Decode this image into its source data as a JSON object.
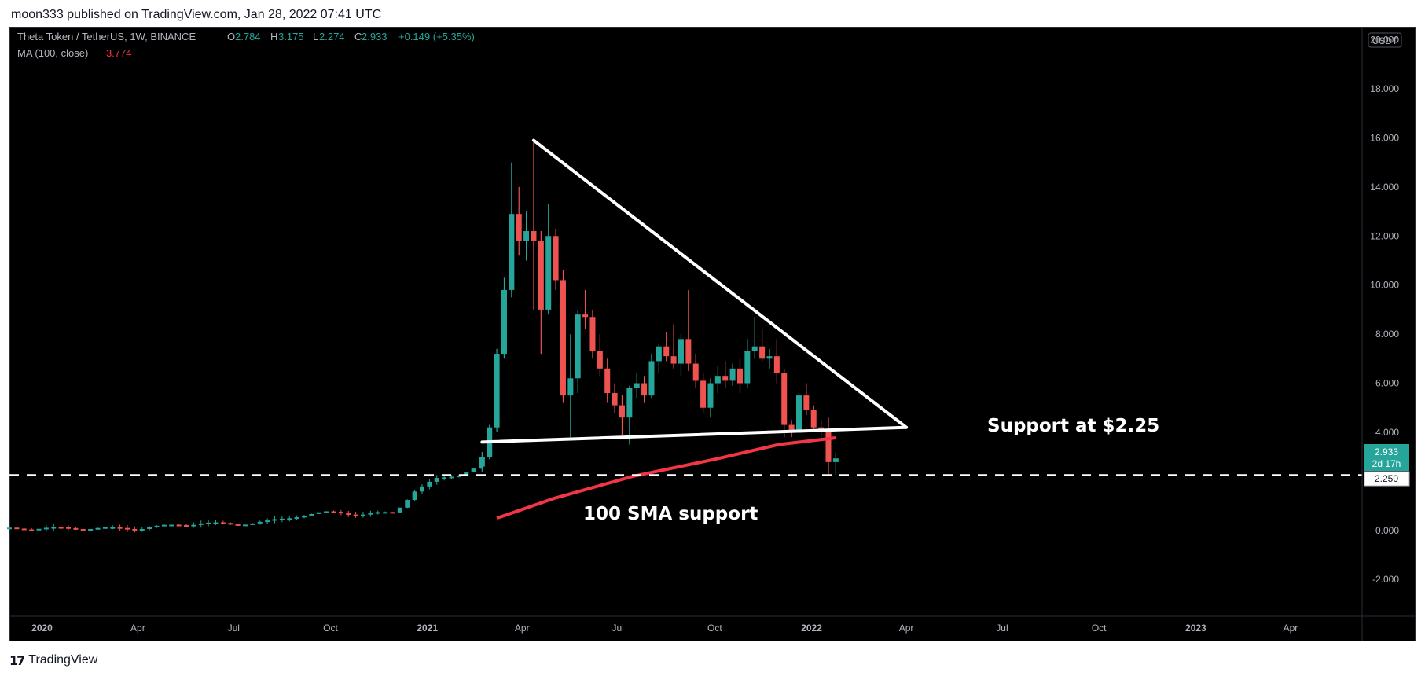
{
  "header": {
    "publisher_line": "moon333 published on TradingView.com, Jan 28, 2022 07:41 UTC"
  },
  "legend": {
    "symbol": "Theta Token / TetherUS, 1W, BINANCE",
    "o_label": "O",
    "o_value": "2.784",
    "h_label": "H",
    "h_value": "3.175",
    "l_label": "L",
    "l_value": "2.274",
    "c_label": "C",
    "c_value": "2.933",
    "change": "+0.149 (+5.35%)",
    "ma_label": "MA (100, close)",
    "ma_value": "3.774"
  },
  "price_axis": {
    "currency": "USDT",
    "ticks": [
      "20.000",
      "18.000",
      "16.000",
      "14.000",
      "12.000",
      "10.000",
      "8.000",
      "6.000",
      "4.000",
      "0.000",
      "-2.000"
    ],
    "last_price": "2.933",
    "countdown": "2d 17h",
    "support_price": "2.250"
  },
  "time_axis": {
    "ticks": [
      "2020",
      "Apr",
      "Jul",
      "Oct",
      "2021",
      "Apr",
      "Jul",
      "Oct",
      "2022",
      "Apr",
      "Jul",
      "Oct",
      "2023",
      "Apr"
    ]
  },
  "annotations": {
    "support_text": "Support at $2.25",
    "sma_text": "100 SMA support"
  },
  "footer": {
    "brand_logo": "17",
    "brand_name": "TradingView"
  },
  "colors": {
    "up": "#26a69a",
    "down": "#ef5350",
    "ma": "#f23645",
    "background": "#000000",
    "axis_text": "#b2b5be",
    "annotation": "#ffffff"
  },
  "chart_data": {
    "type": "candlestick",
    "symbol": "Theta Token / TetherUS",
    "interval": "1W",
    "exchange": "BINANCE",
    "ylim": [
      -3.5,
      20.5
    ],
    "x_range": [
      "2019-12-01",
      "2023-06-08"
    ],
    "candles": [
      {
        "date": "2021-02-22",
        "o": 2.6,
        "h": 3.2,
        "l": 2.4,
        "c": 3.0
      },
      {
        "date": "2021-03-01",
        "o": 3.0,
        "h": 4.3,
        "l": 2.9,
        "c": 4.2
      },
      {
        "date": "2021-03-08",
        "o": 4.2,
        "h": 7.4,
        "l": 4.0,
        "c": 7.2
      },
      {
        "date": "2021-03-15",
        "o": 7.2,
        "h": 10.3,
        "l": 7.0,
        "c": 9.8
      },
      {
        "date": "2021-03-22",
        "o": 9.8,
        "h": 15.0,
        "l": 9.5,
        "c": 12.9
      },
      {
        "date": "2021-03-29",
        "o": 12.9,
        "h": 14.0,
        "l": 11.2,
        "c": 11.8
      },
      {
        "date": "2021-04-05",
        "o": 11.8,
        "h": 13.0,
        "l": 11.0,
        "c": 12.2
      },
      {
        "date": "2021-04-12",
        "o": 12.2,
        "h": 15.9,
        "l": 9.0,
        "c": 11.8
      },
      {
        "date": "2021-04-19",
        "o": 11.8,
        "h": 12.2,
        "l": 7.2,
        "c": 9.0
      },
      {
        "date": "2021-04-26",
        "o": 9.0,
        "h": 13.3,
        "l": 8.8,
        "c": 12.0
      },
      {
        "date": "2021-05-03",
        "o": 12.0,
        "h": 12.3,
        "l": 9.8,
        "c": 10.2
      },
      {
        "date": "2021-05-10",
        "o": 10.2,
        "h": 10.6,
        "l": 5.2,
        "c": 5.5
      },
      {
        "date": "2021-05-17",
        "o": 5.5,
        "h": 8.0,
        "l": 3.8,
        "c": 6.2
      },
      {
        "date": "2021-05-24",
        "o": 6.2,
        "h": 9.0,
        "l": 5.6,
        "c": 8.8
      },
      {
        "date": "2021-05-31",
        "o": 8.8,
        "h": 9.8,
        "l": 8.2,
        "c": 8.7
      },
      {
        "date": "2021-06-07",
        "o": 8.7,
        "h": 9.0,
        "l": 7.0,
        "c": 7.3
      },
      {
        "date": "2021-06-14",
        "o": 7.3,
        "h": 8.0,
        "l": 6.3,
        "c": 6.6
      },
      {
        "date": "2021-06-21",
        "o": 6.6,
        "h": 7.0,
        "l": 5.2,
        "c": 5.6
      },
      {
        "date": "2021-06-28",
        "o": 5.6,
        "h": 6.0,
        "l": 4.8,
        "c": 5.1
      },
      {
        "date": "2021-07-05",
        "o": 5.1,
        "h": 5.5,
        "l": 3.9,
        "c": 4.6
      },
      {
        "date": "2021-07-12",
        "o": 4.6,
        "h": 5.9,
        "l": 3.5,
        "c": 5.8
      },
      {
        "date": "2021-07-19",
        "o": 5.8,
        "h": 6.4,
        "l": 5.4,
        "c": 6.0
      },
      {
        "date": "2021-07-26",
        "o": 6.0,
        "h": 6.3,
        "l": 5.2,
        "c": 5.5
      },
      {
        "date": "2021-08-02",
        "o": 5.5,
        "h": 7.2,
        "l": 5.4,
        "c": 6.9
      },
      {
        "date": "2021-08-09",
        "o": 6.9,
        "h": 7.6,
        "l": 6.4,
        "c": 7.5
      },
      {
        "date": "2021-08-16",
        "o": 7.5,
        "h": 8.1,
        "l": 6.9,
        "c": 7.1
      },
      {
        "date": "2021-08-23",
        "o": 7.1,
        "h": 8.4,
        "l": 6.6,
        "c": 6.8
      },
      {
        "date": "2021-08-30",
        "o": 6.8,
        "h": 8.0,
        "l": 6.3,
        "c": 7.8
      },
      {
        "date": "2021-09-06",
        "o": 7.8,
        "h": 9.8,
        "l": 6.5,
        "c": 6.8
      },
      {
        "date": "2021-09-13",
        "o": 6.8,
        "h": 7.2,
        "l": 5.8,
        "c": 6.1
      },
      {
        "date": "2021-09-20",
        "o": 6.1,
        "h": 6.4,
        "l": 4.8,
        "c": 5.0
      },
      {
        "date": "2021-09-27",
        "o": 5.0,
        "h": 6.2,
        "l": 4.6,
        "c": 6.0
      },
      {
        "date": "2021-10-04",
        "o": 6.0,
        "h": 6.7,
        "l": 5.6,
        "c": 6.3
      },
      {
        "date": "2021-10-11",
        "o": 6.3,
        "h": 6.9,
        "l": 5.8,
        "c": 6.1
      },
      {
        "date": "2021-10-18",
        "o": 6.1,
        "h": 6.8,
        "l": 5.9,
        "c": 6.6
      },
      {
        "date": "2021-10-25",
        "o": 6.6,
        "h": 7.0,
        "l": 5.6,
        "c": 6.0
      },
      {
        "date": "2021-11-01",
        "o": 6.0,
        "h": 7.8,
        "l": 5.8,
        "c": 7.3
      },
      {
        "date": "2021-11-08",
        "o": 7.3,
        "h": 8.7,
        "l": 7.0,
        "c": 7.5
      },
      {
        "date": "2021-11-15",
        "o": 7.5,
        "h": 8.2,
        "l": 6.9,
        "c": 7.0
      },
      {
        "date": "2021-11-22",
        "o": 7.0,
        "h": 7.4,
        "l": 6.6,
        "c": 7.1
      },
      {
        "date": "2021-11-29",
        "o": 7.1,
        "h": 7.8,
        "l": 6.0,
        "c": 6.4
      },
      {
        "date": "2021-12-06",
        "o": 6.4,
        "h": 6.6,
        "l": 3.8,
        "c": 4.3
      },
      {
        "date": "2021-12-13",
        "o": 4.3,
        "h": 4.5,
        "l": 3.8,
        "c": 4.1
      },
      {
        "date": "2021-12-20",
        "o": 4.1,
        "h": 5.6,
        "l": 4.0,
        "c": 5.5
      },
      {
        "date": "2021-12-27",
        "o": 5.5,
        "h": 6.0,
        "l": 4.7,
        "c": 4.9
      },
      {
        "date": "2022-01-03",
        "o": 4.9,
        "h": 5.1,
        "l": 4.0,
        "c": 4.2
      },
      {
        "date": "2022-01-10",
        "o": 4.2,
        "h": 4.5,
        "l": 3.8,
        "c": 4.1
      },
      {
        "date": "2022-01-17",
        "o": 4.1,
        "h": 4.6,
        "l": 2.3,
        "c": 2.784
      },
      {
        "date": "2022-01-24",
        "o": 2.784,
        "h": 3.175,
        "l": 2.274,
        "c": 2.933
      }
    ],
    "early_history": {
      "note_points": [
        {
          "date": "2019-12-01",
          "v": 0.08
        },
        {
          "date": "2020-02-01",
          "v": 0.09
        },
        {
          "date": "2020-04-01",
          "v": 0.08
        },
        {
          "date": "2020-05-01",
          "v": 0.2
        },
        {
          "date": "2020-06-01",
          "v": 0.3
        },
        {
          "date": "2020-07-01",
          "v": 0.25
        },
        {
          "date": "2020-08-01",
          "v": 0.35
        },
        {
          "date": "2020-09-01",
          "v": 0.6
        },
        {
          "date": "2020-10-01",
          "v": 0.75
        },
        {
          "date": "2020-11-01",
          "v": 0.65
        },
        {
          "date": "2020-12-01",
          "v": 0.75
        },
        {
          "date": "2020-12-20",
          "v": 1.6
        },
        {
          "date": "2021-01-10",
          "v": 2.1
        },
        {
          "date": "2021-02-01",
          "v": 2.3
        },
        {
          "date": "2021-02-20",
          "v": 2.6
        }
      ]
    },
    "ma_100": [
      {
        "date": "2021-03-08",
        "v": 0.5
      },
      {
        "date": "2021-05-01",
        "v": 1.3
      },
      {
        "date": "2021-07-15",
        "v": 2.2
      },
      {
        "date": "2021-10-01",
        "v": 2.9
      },
      {
        "date": "2021-12-01",
        "v": 3.5
      },
      {
        "date": "2022-01-24",
        "v": 3.774
      }
    ],
    "drawings": {
      "descending_trendline": [
        {
          "date": "2021-04-12",
          "v": 15.9
        },
        {
          "date": "2022-04-01",
          "v": 4.2
        }
      ],
      "support_trendline": [
        {
          "date": "2021-02-22",
          "v": 3.6
        },
        {
          "date": "2022-04-01",
          "v": 4.2
        }
      ],
      "horizontal_support": 2.25
    }
  }
}
